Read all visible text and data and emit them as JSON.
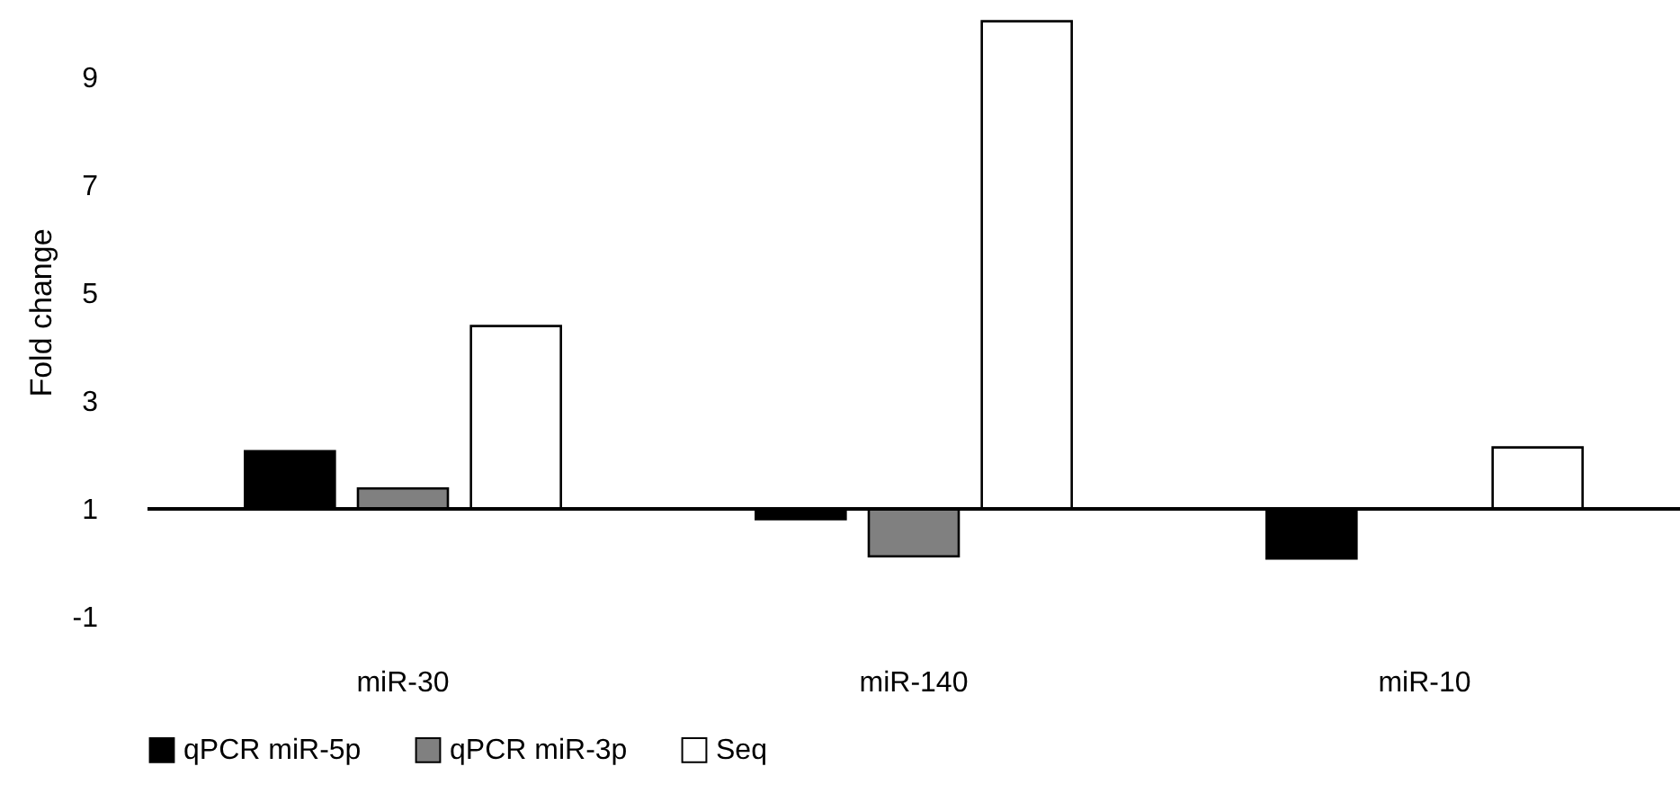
{
  "chart_data": {
    "type": "bar",
    "ylabel": "Fold change",
    "categories": [
      "miR-30",
      "miR-140",
      "miR-10"
    ],
    "series": [
      {
        "name": "qPCR miR-5p",
        "color": "#000000",
        "values": [
          1.07,
          -0.19,
          -0.92
        ],
        "base": [
          1,
          1,
          1
        ]
      },
      {
        "name": "qPCR miR-3p",
        "color": "#808080",
        "values": [
          0.38,
          -0.88,
          null
        ],
        "base": [
          1,
          1,
          null
        ]
      },
      {
        "name": "Seq",
        "color": "#ffffff",
        "values": [
          3.39,
          9.04,
          1.14
        ],
        "base": [
          1,
          1,
          1
        ]
      }
    ],
    "ylim": [
      -1,
      10.3
    ],
    "yticks": [
      -1,
      1,
      3,
      5,
      7,
      9
    ],
    "ref_lines": [
      {
        "axis": "y",
        "value": 1,
        "color": "#000000"
      }
    ],
    "grid": false,
    "legend": "bottom"
  }
}
